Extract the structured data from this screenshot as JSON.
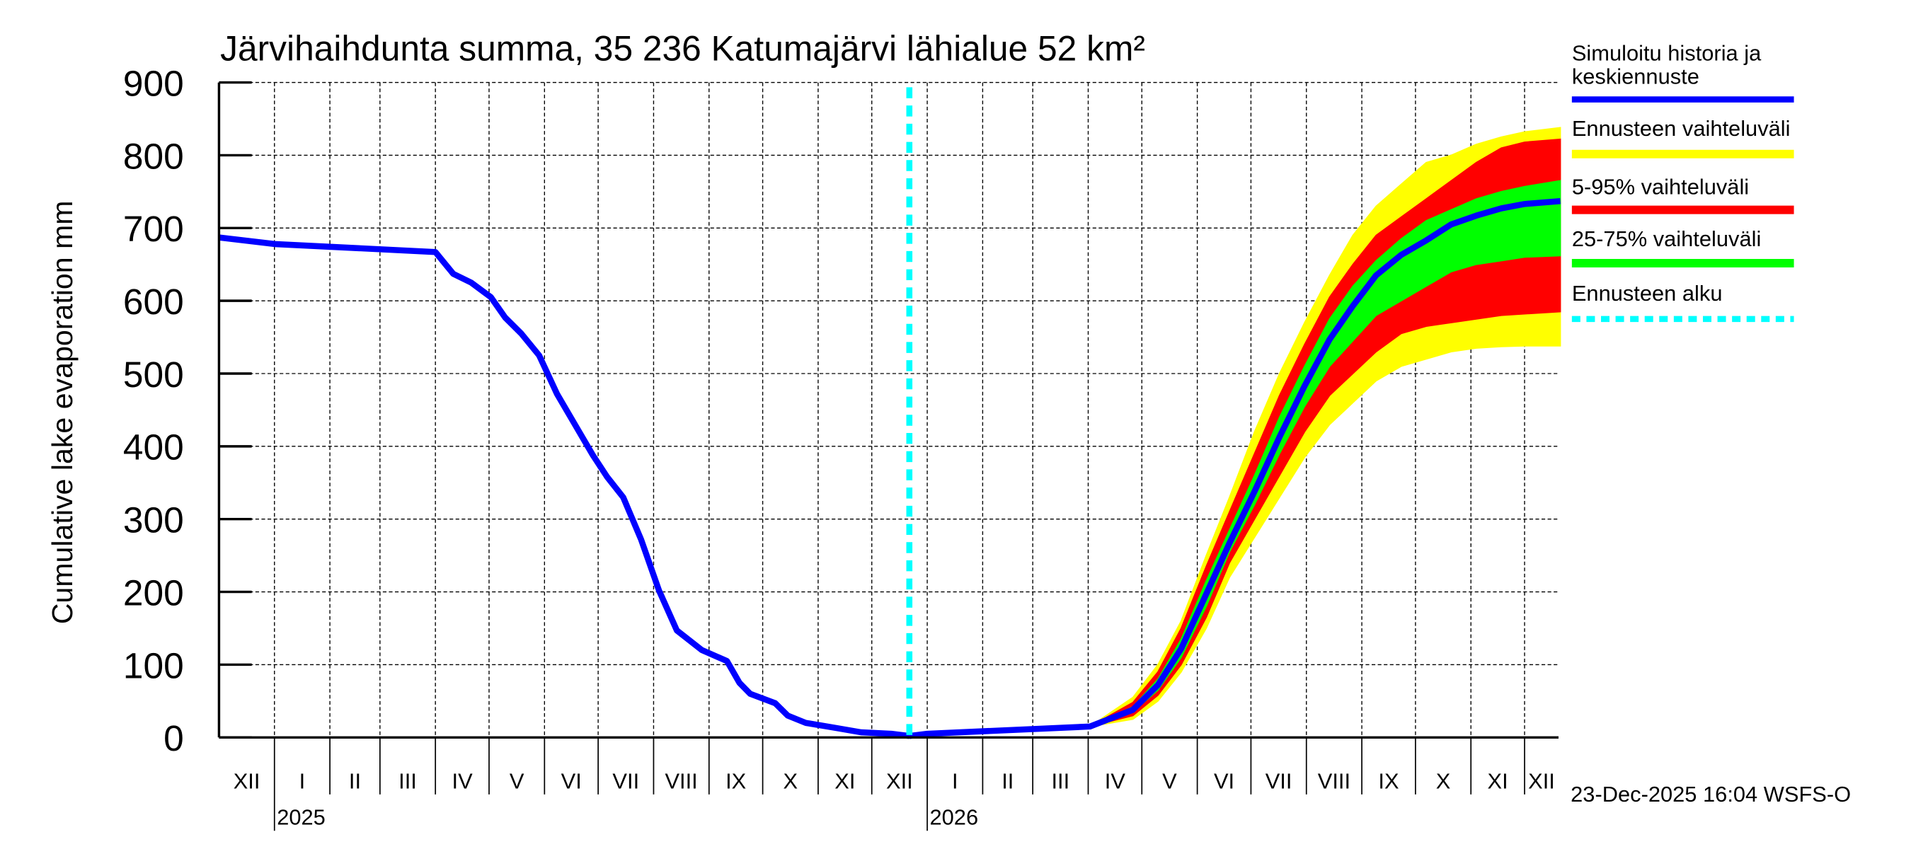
{
  "chart_data": {
    "type": "area",
    "title": "Järvihaihdunta summa, 35 236 Katumajärvi lähialue 52 km²",
    "ylabel": "Cumulative lake evaporation   mm",
    "ylim": [
      0,
      900
    ],
    "yticks": [
      "0",
      "100",
      "200",
      "300",
      "400",
      "500",
      "600",
      "700",
      "800",
      "900"
    ],
    "xlim": [
      "2024-12-01",
      "2026-12-31"
    ],
    "month_labels": [
      "XII",
      "I",
      "II",
      "III",
      "IV",
      "V",
      "VI",
      "VII",
      "VIII",
      "IX",
      "X",
      "XI",
      "XII",
      "I",
      "II",
      "III",
      "IV",
      "V",
      "VI",
      "VII",
      "VIII",
      "IX",
      "X",
      "XI",
      "XII"
    ],
    "year_labels": [
      "2025",
      "2026"
    ],
    "grid": true,
    "forecast_start": "2025-12-22",
    "history": {
      "name": "Simuloitu historia ja keskiennuste",
      "color": "#0000ff",
      "dates": [
        "2024-12-01",
        "2025-01-01",
        "2025-04-01",
        "2025-04-11",
        "2025-04-21",
        "2025-05-02",
        "2025-05-10",
        "2025-05-19",
        "2025-05-29",
        "2025-06-08",
        "2025-06-18",
        "2025-06-28",
        "2025-07-06",
        "2025-07-15",
        "2025-07-25",
        "2025-08-04",
        "2025-08-14",
        "2025-08-28",
        "2025-09-11",
        "2025-09-18",
        "2025-09-24",
        "2025-10-08",
        "2025-10-15",
        "2025-10-25",
        "2025-11-11",
        "2025-11-25",
        "2025-12-12",
        "2025-12-22"
      ],
      "values": [
        687,
        678,
        667,
        637,
        625,
        605,
        577,
        555,
        525,
        472,
        430,
        388,
        358,
        330,
        272,
        202,
        147,
        120,
        105,
        75,
        60,
        47,
        30,
        20,
        13,
        7,
        5,
        2
      ]
    },
    "forecast": {
      "dates": [
        "2025-12-22",
        "2026-01-01",
        "2026-04-02",
        "2026-04-26",
        "2026-05-10",
        "2026-05-23",
        "2026-06-06",
        "2026-06-19",
        "2026-07-03",
        "2026-07-17",
        "2026-07-31",
        "2026-08-14",
        "2026-08-27",
        "2026-09-09",
        "2026-09-23",
        "2026-10-07",
        "2026-10-21",
        "2026-11-04",
        "2026-11-18",
        "2026-12-01",
        "2026-12-21"
      ],
      "median": [
        2,
        5,
        15,
        38,
        72,
        122,
        197,
        267,
        338,
        413,
        483,
        547,
        593,
        635,
        663,
        683,
        705,
        717,
        727,
        733,
        737
      ],
      "min": [
        2,
        5,
        15,
        25,
        50,
        90,
        150,
        220,
        275,
        330,
        385,
        430,
        460,
        490,
        510,
        520,
        530,
        535,
        537,
        538,
        538
      ],
      "p5": [
        2,
        5,
        15,
        30,
        58,
        100,
        165,
        240,
        300,
        360,
        420,
        470,
        500,
        530,
        555,
        565,
        570,
        575,
        580,
        582,
        585
      ],
      "p25": [
        2,
        5,
        15,
        35,
        65,
        110,
        180,
        255,
        320,
        390,
        455,
        510,
        545,
        580,
        600,
        620,
        640,
        650,
        655,
        660,
        662
      ],
      "p75": [
        2,
        5,
        15,
        42,
        80,
        135,
        215,
        285,
        360,
        440,
        510,
        575,
        620,
        655,
        685,
        710,
        725,
        740,
        750,
        757,
        765
      ],
      "p95": [
        2,
        5,
        15,
        48,
        90,
        150,
        235,
        310,
        390,
        470,
        540,
        605,
        650,
        690,
        715,
        740,
        765,
        790,
        810,
        818,
        822
      ],
      "max": [
        2,
        5,
        15,
        55,
        100,
        160,
        250,
        330,
        420,
        500,
        570,
        635,
        690,
        730,
        760,
        790,
        800,
        815,
        825,
        832,
        838
      ]
    },
    "legend": {
      "placement": "right",
      "items": [
        {
          "label": "Simuloitu historia ja",
          "label2": "keskiennuste",
          "color": "#0000ff",
          "style": "solid"
        },
        {
          "label": "Ennusteen vaihteluväli",
          "color": "#ffff00",
          "style": "solid"
        },
        {
          "label": "5-95% vaihteluväli",
          "color": "#ff0000",
          "style": "solid"
        },
        {
          "label": "25-75% vaihteluväli",
          "color": "#00ff00",
          "style": "solid"
        },
        {
          "label": "Ennusteen alku",
          "color": "#00ffff",
          "style": "dotted"
        }
      ]
    },
    "footer": "23-Dec-2025 16:04 WSFS-O"
  }
}
